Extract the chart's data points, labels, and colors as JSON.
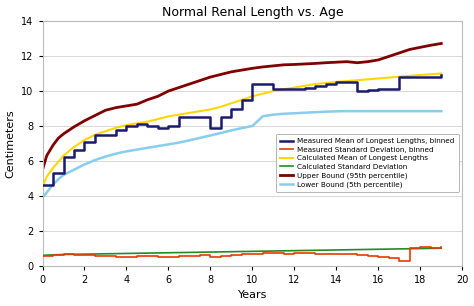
{
  "title": "Normal Renal Length vs. Age",
  "xlabel": "Years",
  "ylabel": "Centimeters",
  "xlim": [
    0,
    19.5
  ],
  "ylim": [
    0,
    14
  ],
  "xticks": [
    0,
    2,
    4,
    6,
    8,
    10,
    12,
    14,
    16,
    18,
    20
  ],
  "yticks": [
    0,
    2,
    4,
    6,
    8,
    10,
    12,
    14
  ],
  "legend_entries": [
    "Measured Mean of Longest Lengths, binned",
    "Measured Standard Deviation, binned",
    "Calculated Mean of Longest Lengths",
    "Calculated Standard Deviation",
    "Upper Bound (95th percentile)",
    "Lower Bound (5th percentile)"
  ],
  "legend_colors": [
    "#1a237e",
    "#e53935",
    "#fdd835",
    "#43a047",
    "#6a0000",
    "#90caf9"
  ],
  "background_color": "#ffffff",
  "measured_mean_x": [
    0,
    0.5,
    1.0,
    1.5,
    2.0,
    2.5,
    3.0,
    3.5,
    4.0,
    4.5,
    5.0,
    5.5,
    6.0,
    6.5,
    7.0,
    7.5,
    8.0,
    8.5,
    9.0,
    9.5,
    10.0,
    10.5,
    11.0,
    11.5,
    12.0,
    12.5,
    13.0,
    13.5,
    14.0,
    14.5,
    15.0,
    15.5,
    16.0,
    16.5,
    17.0,
    17.5,
    18.0,
    18.5,
    19.0
  ],
  "measured_mean_y": [
    4.6,
    5.3,
    6.2,
    6.6,
    7.1,
    7.5,
    7.5,
    7.8,
    8.0,
    8.1,
    8.0,
    7.9,
    8.0,
    8.5,
    8.5,
    8.5,
    7.9,
    8.5,
    9.0,
    9.5,
    10.4,
    10.4,
    10.1,
    10.1,
    10.1,
    10.2,
    10.3,
    10.4,
    10.5,
    10.5,
    10.0,
    10.05,
    10.1,
    10.1,
    10.8,
    10.8,
    10.8,
    10.8,
    10.9
  ],
  "measured_std_x": [
    0,
    0.5,
    1.0,
    1.5,
    2.0,
    2.5,
    3.0,
    3.5,
    4.0,
    4.5,
    5.0,
    5.5,
    6.0,
    6.5,
    7.0,
    7.5,
    8.0,
    8.5,
    9.0,
    9.5,
    10.0,
    10.5,
    11.0,
    11.5,
    12.0,
    12.5,
    13.0,
    13.5,
    14.0,
    14.5,
    15.0,
    15.5,
    16.0,
    16.5,
    17.0,
    17.5,
    18.0,
    18.5,
    19.0
  ],
  "measured_std_y": [
    0.55,
    0.6,
    0.65,
    0.6,
    0.6,
    0.55,
    0.55,
    0.5,
    0.5,
    0.55,
    0.55,
    0.5,
    0.5,
    0.55,
    0.55,
    0.6,
    0.5,
    0.55,
    0.6,
    0.65,
    0.7,
    0.75,
    0.75,
    0.7,
    0.75,
    0.75,
    0.7,
    0.7,
    0.7,
    0.65,
    0.6,
    0.55,
    0.5,
    0.45,
    0.3,
    1.0,
    1.1,
    1.05,
    1.1
  ],
  "calc_mean_x": [
    0,
    0.2,
    0.5,
    1.0,
    1.5,
    2.0,
    2.5,
    3.0,
    3.5,
    4.0,
    4.5,
    5.0,
    5.5,
    6.0,
    6.5,
    7.0,
    7.5,
    8.0,
    8.5,
    9.0,
    9.5,
    10.0,
    10.5,
    11.0,
    11.5,
    12.0,
    12.5,
    13.0,
    13.5,
    14.0,
    14.5,
    15.0,
    15.5,
    16.0,
    16.5,
    17.0,
    17.5,
    18.0,
    18.5,
    19.0
  ],
  "calc_mean_y": [
    4.5,
    5.1,
    5.6,
    6.3,
    6.8,
    7.2,
    7.5,
    7.7,
    7.9,
    8.05,
    8.15,
    8.25,
    8.4,
    8.55,
    8.65,
    8.75,
    8.85,
    8.95,
    9.1,
    9.3,
    9.5,
    9.7,
    9.85,
    10.0,
    10.1,
    10.2,
    10.3,
    10.4,
    10.46,
    10.52,
    10.57,
    10.62,
    10.67,
    10.72,
    10.77,
    10.82,
    10.87,
    10.92,
    10.96,
    11.0
  ],
  "calc_std_x": [
    0,
    0.5,
    1.0,
    2.0,
    3.0,
    4.0,
    5.0,
    6.0,
    7.0,
    8.0,
    9.0,
    10.0,
    11.0,
    12.0,
    13.0,
    14.0,
    15.0,
    16.0,
    17.0,
    18.0,
    19.0
  ],
  "calc_std_y": [
    0.6,
    0.63,
    0.65,
    0.67,
    0.69,
    0.71,
    0.73,
    0.75,
    0.77,
    0.79,
    0.81,
    0.83,
    0.85,
    0.87,
    0.89,
    0.91,
    0.93,
    0.95,
    0.97,
    0.99,
    1.01
  ],
  "upper_bound_x": [
    0,
    0.2,
    0.5,
    0.75,
    1.0,
    1.5,
    2.0,
    2.5,
    3.0,
    3.5,
    4.0,
    4.5,
    5.0,
    5.5,
    6.0,
    6.5,
    7.0,
    7.5,
    8.0,
    8.5,
    9.0,
    9.5,
    10.0,
    10.5,
    11.0,
    11.5,
    12.0,
    12.5,
    13.0,
    13.5,
    14.0,
    14.5,
    15.0,
    15.5,
    16.0,
    16.5,
    17.0,
    17.5,
    18.0,
    18.5,
    19.0
  ],
  "upper_bound_y": [
    5.5,
    6.3,
    6.9,
    7.3,
    7.55,
    7.95,
    8.3,
    8.6,
    8.9,
    9.05,
    9.15,
    9.25,
    9.5,
    9.7,
    10.0,
    10.2,
    10.4,
    10.6,
    10.8,
    10.95,
    11.1,
    11.2,
    11.3,
    11.38,
    11.44,
    11.5,
    11.52,
    11.55,
    11.58,
    11.62,
    11.65,
    11.68,
    11.62,
    11.68,
    11.78,
    11.98,
    12.18,
    12.38,
    12.5,
    12.62,
    12.72
  ],
  "lower_bound_x": [
    0,
    0.2,
    0.5,
    0.75,
    1.0,
    1.5,
    2.0,
    2.5,
    3.0,
    3.5,
    4.0,
    4.5,
    5.0,
    5.5,
    6.0,
    6.5,
    7.0,
    7.5,
    8.0,
    8.5,
    9.0,
    9.5,
    10.0,
    10.5,
    11.0,
    11.5,
    12.0,
    12.5,
    13.0,
    13.5,
    14.0,
    14.5,
    15.0,
    15.5,
    16.0,
    16.5,
    17.0,
    17.5,
    18.0,
    18.5,
    19.0
  ],
  "lower_bound_y": [
    3.9,
    4.2,
    4.65,
    4.95,
    5.2,
    5.5,
    5.8,
    6.05,
    6.25,
    6.42,
    6.55,
    6.65,
    6.75,
    6.85,
    6.95,
    7.05,
    7.18,
    7.32,
    7.46,
    7.6,
    7.75,
    7.88,
    8.0,
    8.56,
    8.65,
    8.7,
    8.73,
    8.76,
    8.79,
    8.82,
    8.84,
    8.85,
    8.85,
    8.85,
    8.85,
    8.85,
    8.85,
    8.85,
    8.85,
    8.85,
    8.85
  ]
}
